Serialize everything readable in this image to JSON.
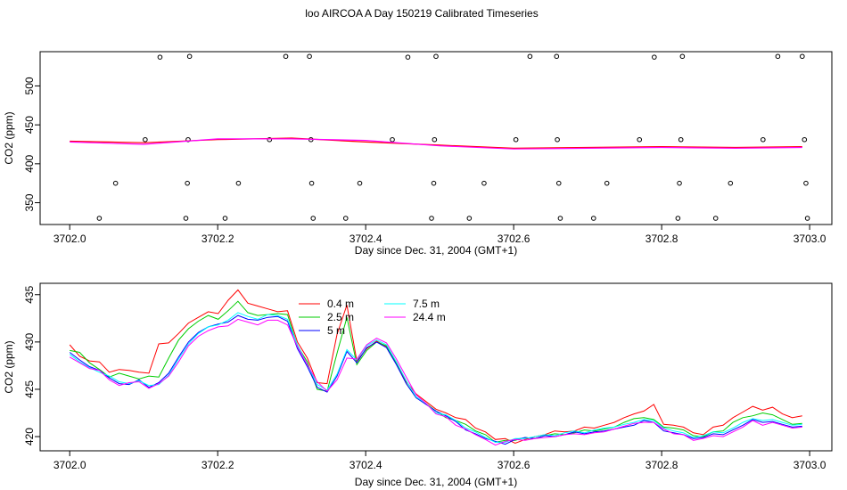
{
  "title": "loo AIRCOA A  Day 150219  Calibrated Timeseries",
  "colors": {
    "0.4 m": "#ff0000",
    "2.5 m": "#00cd00",
    "5 m": "#0000ff",
    "7.5 m": "#00ffff",
    "24.4 m": "#ff00ff",
    "axis": "#000000"
  },
  "chart_data": [
    {
      "type": "scatter",
      "xlabel": "Day since Dec. 31, 2004 (GMT+1)",
      "ylabel": "CO2 (ppm)",
      "xlim": [
        3701.96,
        3703.03
      ],
      "ylim": [
        322,
        544
      ],
      "x_ticks": [
        3702.0,
        3702.2,
        3702.4,
        3702.6,
        3702.8,
        3703.0
      ],
      "x_tick_labels": [
        "3702.0",
        "3702.2",
        "3702.4",
        "3702.6",
        "3702.8",
        "3703.0"
      ],
      "y_ticks": [
        350,
        400,
        450,
        500
      ],
      "y_tick_labels": [
        "350",
        "400",
        "450",
        "500"
      ],
      "calibration_points": [
        {
          "x": 3702.04,
          "y": 330
        },
        {
          "x": 3702.062,
          "y": 375
        },
        {
          "x": 3702.102,
          "y": 431
        },
        {
          "x": 3702.122,
          "y": 537
        },
        {
          "x": 3702.157,
          "y": 330
        },
        {
          "x": 3702.159,
          "y": 375
        },
        {
          "x": 3702.16,
          "y": 431
        },
        {
          "x": 3702.162,
          "y": 538
        },
        {
          "x": 3702.21,
          "y": 330
        },
        {
          "x": 3702.228,
          "y": 375
        },
        {
          "x": 3702.27,
          "y": 431
        },
        {
          "x": 3702.292,
          "y": 538
        },
        {
          "x": 3702.324,
          "y": 538
        },
        {
          "x": 3702.326,
          "y": 431
        },
        {
          "x": 3702.327,
          "y": 375
        },
        {
          "x": 3702.329,
          "y": 330
        },
        {
          "x": 3702.373,
          "y": 330
        },
        {
          "x": 3702.392,
          "y": 375
        },
        {
          "x": 3702.436,
          "y": 431
        },
        {
          "x": 3702.457,
          "y": 537
        },
        {
          "x": 3702.489,
          "y": 330
        },
        {
          "x": 3702.492,
          "y": 375
        },
        {
          "x": 3702.493,
          "y": 431
        },
        {
          "x": 3702.495,
          "y": 538
        },
        {
          "x": 3702.54,
          "y": 330
        },
        {
          "x": 3702.56,
          "y": 375
        },
        {
          "x": 3702.603,
          "y": 431
        },
        {
          "x": 3702.622,
          "y": 538
        },
        {
          "x": 3702.658,
          "y": 538
        },
        {
          "x": 3702.659,
          "y": 431
        },
        {
          "x": 3702.661,
          "y": 375
        },
        {
          "x": 3702.663,
          "y": 330
        },
        {
          "x": 3702.708,
          "y": 330
        },
        {
          "x": 3702.726,
          "y": 375
        },
        {
          "x": 3702.77,
          "y": 431
        },
        {
          "x": 3702.79,
          "y": 537
        },
        {
          "x": 3702.822,
          "y": 330
        },
        {
          "x": 3702.824,
          "y": 375
        },
        {
          "x": 3702.826,
          "y": 431
        },
        {
          "x": 3702.828,
          "y": 538
        },
        {
          "x": 3702.873,
          "y": 330
        },
        {
          "x": 3702.893,
          "y": 375
        },
        {
          "x": 3702.937,
          "y": 431
        },
        {
          "x": 3702.957,
          "y": 538
        },
        {
          "x": 3702.99,
          "y": 538
        },
        {
          "x": 3702.993,
          "y": 431
        },
        {
          "x": 3702.995,
          "y": 375
        },
        {
          "x": 3702.997,
          "y": 330
        }
      ],
      "series_values": [
        {
          "name": "0.4 m",
          "x": [
            3702.0,
            3702.1,
            3702.2,
            3702.3,
            3702.4,
            3702.5,
            3702.6,
            3702.7,
            3702.8,
            3702.9,
            3702.99
          ],
          "y": [
            429,
            427,
            431,
            433,
            428,
            424,
            420,
            421,
            422,
            421,
            422
          ]
        },
        {
          "name": "24.4 m",
          "x": [
            3702.0,
            3702.1,
            3702.2,
            3702.3,
            3702.4,
            3702.5,
            3702.6,
            3702.7,
            3702.8,
            3702.9,
            3702.99
          ],
          "y": [
            428,
            425,
            432,
            432,
            430,
            423,
            419,
            420,
            421,
            420,
            421
          ]
        }
      ]
    },
    {
      "type": "line",
      "xlabel": "Day since Dec. 31, 2004 (GMT+1)",
      "ylabel": "CO2 (ppm)",
      "xlim": [
        3701.96,
        3703.03
      ],
      "ylim": [
        418.5,
        436.2
      ],
      "legend_position": "top-center",
      "x_ticks": [
        3702.0,
        3702.2,
        3702.4,
        3702.6,
        3702.8,
        3703.0
      ],
      "x_tick_labels": [
        "3702.0",
        "3702.2",
        "3702.4",
        "3702.6",
        "3702.8",
        "3703.0"
      ],
      "y_ticks": [
        420,
        425,
        430,
        435
      ],
      "y_tick_labels": [
        "420",
        "425",
        "430",
        "435"
      ],
      "series": [
        {
          "name": "0.4 m",
          "y": [
            429.7,
            428.5,
            428.0,
            427.9,
            426.8,
            427.1,
            427.0,
            426.8,
            426.7,
            429.8,
            429.9,
            430.9,
            432.0,
            432.6,
            433.2,
            433.0,
            434.4,
            435.5,
            434.1,
            433.8,
            433.5,
            433.2,
            433.3,
            430.0,
            428.3,
            425.7,
            425.6,
            430.8,
            433.9,
            428.0,
            429.3,
            430.1,
            429.5,
            427.9,
            425.8,
            424.5,
            423.7,
            422.9,
            422.5,
            422.0,
            421.8,
            420.9,
            420.5,
            419.7,
            419.8,
            419.3,
            419.7,
            420.0,
            420.2,
            420.6,
            420.5,
            420.6,
            421.0,
            420.9,
            421.2,
            421.5,
            422.0,
            422.4,
            422.7,
            423.4,
            421.3,
            421.2,
            421.0,
            420.4,
            420.2,
            421.0,
            421.2,
            422.0,
            422.6,
            423.2,
            422.8,
            423.1,
            422.4,
            422.0,
            422.2
          ]
        },
        {
          "name": "2.5 m",
          "y": [
            429.1,
            428.9,
            427.8,
            427.1,
            426.3,
            426.7,
            426.4,
            426.1,
            426.4,
            426.3,
            428.3,
            430.2,
            431.4,
            432.2,
            432.8,
            432.4,
            433.3,
            434.3,
            433.1,
            432.8,
            432.9,
            433.0,
            432.9,
            429.6,
            427.9,
            425.0,
            424.8,
            428.8,
            432.6,
            427.6,
            429.1,
            430.0,
            429.6,
            427.7,
            425.6,
            424.1,
            423.5,
            422.7,
            422.0,
            421.7,
            421.3,
            420.6,
            420.2,
            419.4,
            419.6,
            419.6,
            419.9,
            419.8,
            420.1,
            420.3,
            420.2,
            420.4,
            420.7,
            420.6,
            420.8,
            421.0,
            421.5,
            421.9,
            422.0,
            421.8,
            421.0,
            420.9,
            420.7,
            420.1,
            420.0,
            420.5,
            420.6,
            421.5,
            422.0,
            422.2,
            422.5,
            422.3,
            421.8,
            421.3,
            421.4
          ]
        },
        {
          "name": "5 m",
          "y": [
            428.9,
            428.1,
            427.4,
            427.0,
            426.2,
            425.6,
            425.5,
            426.0,
            425.2,
            425.7,
            426.7,
            428.4,
            430.0,
            431.0,
            431.6,
            431.9,
            432.1,
            432.8,
            432.4,
            432.3,
            432.6,
            432.7,
            432.2,
            429.3,
            427.4,
            425.2,
            424.7,
            426.4,
            429.0,
            427.8,
            429.4,
            430.0,
            429.4,
            427.6,
            425.6,
            424.1,
            423.4,
            422.7,
            422.2,
            421.6,
            420.7,
            420.3,
            419.8,
            419.5,
            419.2,
            419.7,
            419.9,
            419.8,
            420.1,
            420.0,
            420.2,
            420.5,
            420.3,
            420.5,
            420.6,
            420.8,
            421.0,
            421.2,
            421.7,
            421.5,
            420.6,
            420.4,
            420.2,
            419.8,
            419.9,
            420.3,
            420.2,
            420.7,
            421.2,
            421.8,
            421.5,
            421.6,
            421.3,
            421.0,
            421.1
          ]
        },
        {
          "name": "7.5 m",
          "y": [
            428.7,
            427.9,
            427.3,
            426.8,
            426.4,
            425.8,
            425.6,
            425.9,
            425.4,
            425.5,
            426.5,
            428.2,
            429.8,
            430.9,
            431.6,
            431.8,
            432.3,
            433.1,
            432.7,
            432.4,
            432.9,
            432.8,
            432.4,
            429.7,
            427.6,
            425.5,
            424.9,
            426.6,
            429.2,
            428.1,
            429.6,
            430.2,
            429.7,
            427.9,
            425.9,
            424.2,
            423.5,
            422.5,
            422.3,
            421.7,
            420.9,
            420.5,
            419.9,
            419.4,
            419.4,
            419.8,
            419.8,
            420.0,
            420.2,
            420.1,
            420.4,
            420.6,
            420.4,
            420.7,
            420.9,
            421.0,
            421.3,
            421.5,
            421.8,
            421.7,
            420.9,
            420.6,
            420.4,
            419.9,
            420.1,
            420.5,
            420.4,
            420.9,
            421.5,
            421.9,
            421.7,
            421.8,
            421.5,
            421.2,
            421.3
          ]
        },
        {
          "name": "24.4 m",
          "y": [
            428.4,
            427.8,
            427.2,
            427.0,
            426.0,
            425.4,
            425.7,
            425.8,
            425.1,
            425.6,
            426.4,
            427.9,
            429.6,
            430.6,
            431.2,
            431.6,
            431.7,
            432.4,
            432.1,
            431.8,
            432.3,
            432.3,
            431.8,
            429.5,
            427.6,
            425.8,
            424.8,
            426.0,
            428.3,
            428.2,
            429.7,
            430.4,
            429.9,
            428.2,
            426.3,
            424.4,
            423.5,
            422.4,
            422.1,
            421.2,
            420.8,
            420.2,
            419.7,
            419.1,
            419.5,
            419.7,
            419.6,
            419.8,
            419.9,
            420.0,
            420.2,
            420.3,
            420.2,
            420.4,
            420.5,
            420.8,
            421.1,
            421.4,
            421.5,
            421.5,
            420.8,
            420.3,
            420.2,
            419.6,
            419.8,
            420.1,
            420.0,
            420.5,
            421.0,
            421.7,
            421.2,
            421.5,
            421.2,
            420.9,
            421.0
          ]
        }
      ]
    }
  ]
}
